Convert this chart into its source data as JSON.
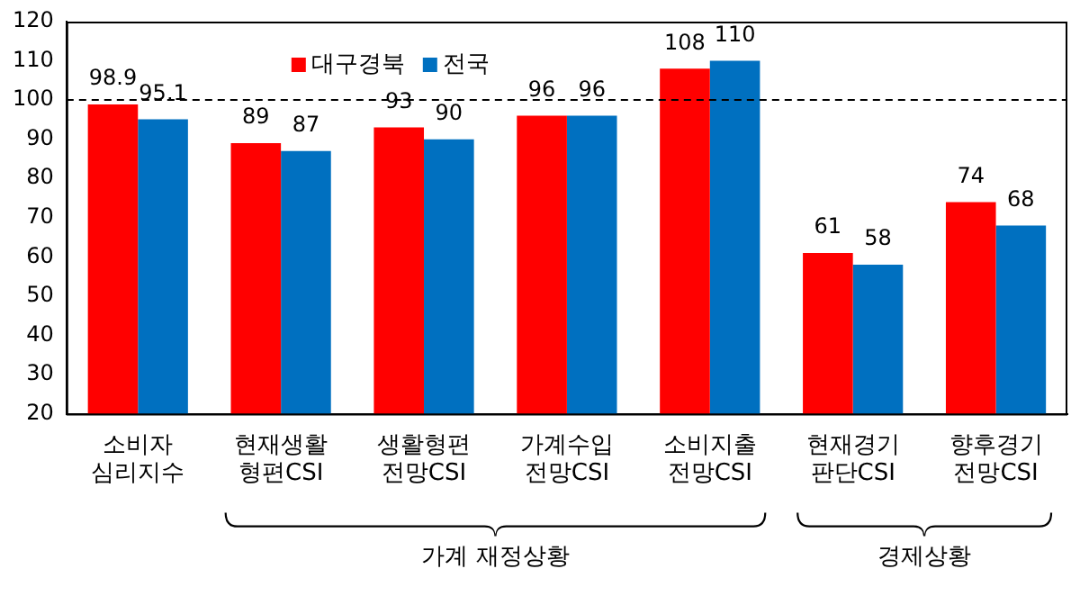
{
  "chart_data": {
    "type": "bar",
    "categories": [
      "소비자 심리지수",
      "현재생활 형편CSI",
      "생활형편 전망CSI",
      "가계수입 전망CSI",
      "소비지출 전망CSI",
      "현재경기 판단CSI",
      "향후경기 전망CSI"
    ],
    "series": [
      {
        "name": "대구경북",
        "color": "#ff0000",
        "values": [
          98.9,
          89,
          93,
          96,
          108,
          61,
          74
        ]
      },
      {
        "name": "전국",
        "color": "#0070c0",
        "values": [
          95.1,
          87,
          90,
          96,
          110,
          58,
          68
        ]
      }
    ],
    "ylim": [
      20,
      120
    ],
    "yticks": [
      20,
      30,
      40,
      50,
      60,
      70,
      80,
      90,
      100,
      110,
      120
    ],
    "ref_lines": [
      {
        "axis": "y",
        "value": 100,
        "line_style": "dashed",
        "color": "#000000"
      }
    ],
    "annotations": [
      "가계 재정상황",
      "경제상황"
    ],
    "data_labels": true,
    "grid": false,
    "legend": "top left"
  }
}
